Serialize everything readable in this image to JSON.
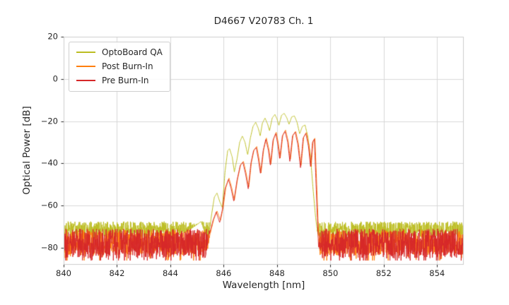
{
  "figure": {
    "background": "#ffffff",
    "text_color": "#262626",
    "frame_color": "#cccccc"
  },
  "chart_data": {
    "type": "line",
    "title": "D4667 V20783 Ch. 1",
    "xlabel": "Wavelength [nm]",
    "ylabel": "Optical Power [dB]",
    "xlim": [
      840,
      855
    ],
    "ylim": [
      -88,
      20
    ],
    "xticks": [
      840,
      842,
      844,
      846,
      848,
      850,
      852,
      854
    ],
    "yticks": [
      20,
      0,
      -20,
      -40,
      -60,
      -80
    ],
    "grid": true,
    "grid_color": "#d8d8d8",
    "legend_position": "upper left",
    "series": [
      {
        "name": "OptoBoard QA",
        "color": "#bcbd22",
        "seed": 11,
        "noise": {
          "mean": -71.5,
          "spread": 8,
          "spike": 5,
          "spike_prob": 0.05
        },
        "points": [
          [
            840,
            -76
          ],
          [
            844.0,
            -76
          ],
          [
            844.3,
            -74
          ],
          [
            844.6,
            -72.5
          ],
          [
            845.0,
            -69
          ],
          [
            845.15,
            -67.5
          ],
          [
            845.3,
            -73
          ],
          [
            845.42,
            -76
          ],
          [
            845.55,
            -64
          ],
          [
            845.65,
            -56
          ],
          [
            845.75,
            -54
          ],
          [
            845.85,
            -58
          ],
          [
            845.95,
            -61
          ],
          [
            846.05,
            -44
          ],
          [
            846.15,
            -34
          ],
          [
            846.22,
            -33
          ],
          [
            846.32,
            -37
          ],
          [
            846.4,
            -44
          ],
          [
            846.5,
            -38
          ],
          [
            846.6,
            -30
          ],
          [
            846.7,
            -27
          ],
          [
            846.8,
            -30
          ],
          [
            846.9,
            -36
          ],
          [
            847.0,
            -28
          ],
          [
            847.1,
            -22.5
          ],
          [
            847.2,
            -20.5
          ],
          [
            847.3,
            -23.5
          ],
          [
            847.37,
            -27
          ],
          [
            847.45,
            -21
          ],
          [
            847.55,
            -18.5
          ],
          [
            847.65,
            -21.5
          ],
          [
            847.72,
            -24.5
          ],
          [
            847.82,
            -18.5
          ],
          [
            847.92,
            -16.8
          ],
          [
            848.0,
            -19
          ],
          [
            848.07,
            -22
          ],
          [
            848.17,
            -17.2
          ],
          [
            848.27,
            -16.3
          ],
          [
            848.37,
            -18.5
          ],
          [
            848.45,
            -21.5
          ],
          [
            848.55,
            -18
          ],
          [
            848.65,
            -17.5
          ],
          [
            848.75,
            -20.5
          ],
          [
            848.85,
            -26
          ],
          [
            848.95,
            -22.5
          ],
          [
            849.05,
            -21.8
          ],
          [
            849.15,
            -27
          ],
          [
            849.25,
            -36
          ],
          [
            849.35,
            -52
          ],
          [
            849.45,
            -66
          ],
          [
            849.55,
            -76
          ],
          [
            855,
            -76
          ]
        ]
      },
      {
        "name": "Post Burn-In",
        "color": "#ff7f0e",
        "seed": 22,
        "noise": {
          "mean": -77.5,
          "spread": 12,
          "spike": 7,
          "spike_prob": 0.1
        },
        "points": [
          [
            840,
            -86
          ],
          [
            845.33,
            -86
          ],
          [
            845.48,
            -74
          ],
          [
            845.63,
            -66.5
          ],
          [
            845.75,
            -62.5
          ],
          [
            845.88,
            -67
          ],
          [
            845.98,
            -61
          ],
          [
            846.08,
            -51.5
          ],
          [
            846.2,
            -47
          ],
          [
            846.3,
            -51.5
          ],
          [
            846.4,
            -57.5
          ],
          [
            846.52,
            -47.5
          ],
          [
            846.64,
            -40.5
          ],
          [
            846.74,
            -39
          ],
          [
            846.84,
            -44.5
          ],
          [
            846.94,
            -51.5
          ],
          [
            847.04,
            -39.5
          ],
          [
            847.14,
            -33.5
          ],
          [
            847.24,
            -32
          ],
          [
            847.32,
            -37.5
          ],
          [
            847.4,
            -44.5
          ],
          [
            847.5,
            -33.5
          ],
          [
            847.6,
            -28
          ],
          [
            847.7,
            -33.5
          ],
          [
            847.77,
            -40.5
          ],
          [
            847.87,
            -28.5
          ],
          [
            847.97,
            -25.2
          ],
          [
            848.05,
            -30.5
          ],
          [
            848.12,
            -37.5
          ],
          [
            848.22,
            -26.5
          ],
          [
            848.32,
            -24.2
          ],
          [
            848.42,
            -29.5
          ],
          [
            848.5,
            -38.5
          ],
          [
            848.6,
            -26.5
          ],
          [
            848.7,
            -24.8
          ],
          [
            848.8,
            -30.5
          ],
          [
            848.9,
            -41.5
          ],
          [
            849.0,
            -27.5
          ],
          [
            849.1,
            -25.3
          ],
          [
            849.2,
            -31.5
          ],
          [
            849.28,
            -41.5
          ],
          [
            849.35,
            -29.5
          ],
          [
            849.42,
            -28
          ],
          [
            849.47,
            -44
          ],
          [
            849.52,
            -61
          ],
          [
            849.57,
            -77
          ],
          [
            849.62,
            -86
          ],
          [
            855,
            -86
          ]
        ]
      },
      {
        "name": "Pre Burn-In",
        "color": "#d62728",
        "seed": 33,
        "noise": {
          "mean": -78,
          "spread": 14,
          "spike": 8,
          "spike_prob": 0.12
        },
        "points": [
          [
            840,
            -86
          ],
          [
            845.3,
            -86
          ],
          [
            845.45,
            -74
          ],
          [
            845.6,
            -67
          ],
          [
            845.72,
            -63
          ],
          [
            845.85,
            -68
          ],
          [
            845.95,
            -62
          ],
          [
            846.05,
            -52
          ],
          [
            846.18,
            -47.5
          ],
          [
            846.28,
            -52
          ],
          [
            846.38,
            -58
          ],
          [
            846.5,
            -48
          ],
          [
            846.62,
            -41
          ],
          [
            846.72,
            -39.5
          ],
          [
            846.82,
            -45
          ],
          [
            846.92,
            -52
          ],
          [
            847.02,
            -40
          ],
          [
            847.12,
            -34
          ],
          [
            847.22,
            -32.5
          ],
          [
            847.3,
            -38
          ],
          [
            847.38,
            -45
          ],
          [
            847.48,
            -34
          ],
          [
            847.58,
            -28.5
          ],
          [
            847.68,
            -34
          ],
          [
            847.75,
            -41
          ],
          [
            847.85,
            -29
          ],
          [
            847.95,
            -25.8
          ],
          [
            848.03,
            -31
          ],
          [
            848.1,
            -38
          ],
          [
            848.2,
            -27
          ],
          [
            848.3,
            -24.8
          ],
          [
            848.4,
            -30
          ],
          [
            848.48,
            -39
          ],
          [
            848.58,
            -27
          ],
          [
            848.68,
            -25.2
          ],
          [
            848.78,
            -31
          ],
          [
            848.88,
            -42
          ],
          [
            848.98,
            -28
          ],
          [
            849.08,
            -25.8
          ],
          [
            849.18,
            -32
          ],
          [
            849.26,
            -42
          ],
          [
            849.33,
            -30
          ],
          [
            849.4,
            -28.5
          ],
          [
            849.45,
            -45
          ],
          [
            849.5,
            -62
          ],
          [
            849.55,
            -78
          ],
          [
            849.6,
            -86
          ],
          [
            855,
            -86
          ]
        ]
      }
    ]
  }
}
